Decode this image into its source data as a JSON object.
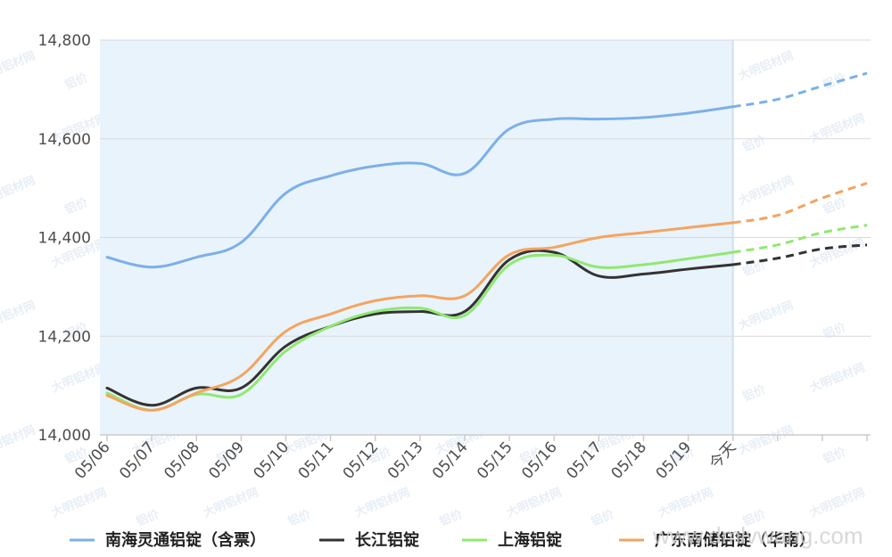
{
  "chart_data": {
    "type": "line",
    "categories": [
      "05/06",
      "05/07",
      "05/08",
      "05/09",
      "05/10",
      "05/11",
      "05/12",
      "05/13",
      "05/14",
      "05/15",
      "05/16",
      "05/17",
      "05/18",
      "05/19",
      "今天",
      "",
      "",
      ""
    ],
    "forecast_start_index": 14,
    "highlight_range": [
      "05/06",
      "今天"
    ],
    "ylim": [
      14000,
      14800
    ],
    "yticks": [
      14000,
      14200,
      14400,
      14600,
      14800
    ],
    "ytick_labels": [
      "14,000",
      "14,200",
      "14,400",
      "14,600",
      "14,800"
    ],
    "grid": true,
    "legend_position": "bottom",
    "series": [
      {
        "name": "南海灵通铝锭（含票）",
        "color": "#7cb0e8",
        "values": [
          14360,
          14340,
          14360,
          14390,
          14490,
          14525,
          14545,
          14550,
          14530,
          14620,
          14640,
          14640,
          14643,
          14652,
          14665,
          14680,
          14707,
          14733
        ]
      },
      {
        "name": "长江铝锭",
        "color": "#333333",
        "values": [
          14095,
          14060,
          14095,
          14095,
          14180,
          14220,
          14245,
          14250,
          14250,
          14355,
          14370,
          14322,
          14326,
          14336,
          14345,
          14358,
          14377,
          14385
        ]
      },
      {
        "name": "上海铝锭",
        "color": "#90e870",
        "values": [
          14085,
          14050,
          14082,
          14082,
          14170,
          14220,
          14250,
          14257,
          14242,
          14345,
          14364,
          14340,
          14345,
          14357,
          14370,
          14385,
          14410,
          14425
        ]
      },
      {
        "name": "广东南储铝锭（华南）",
        "color": "#f4a460",
        "values": [
          14080,
          14050,
          14085,
          14120,
          14210,
          14245,
          14272,
          14282,
          14282,
          14365,
          14380,
          14400,
          14410,
          14420,
          14430,
          14445,
          14480,
          14510
        ]
      }
    ]
  },
  "watermark": {
    "logo_text": "大明铝材网",
    "text": "铝价",
    "site": "www.dmlvwang.com"
  }
}
